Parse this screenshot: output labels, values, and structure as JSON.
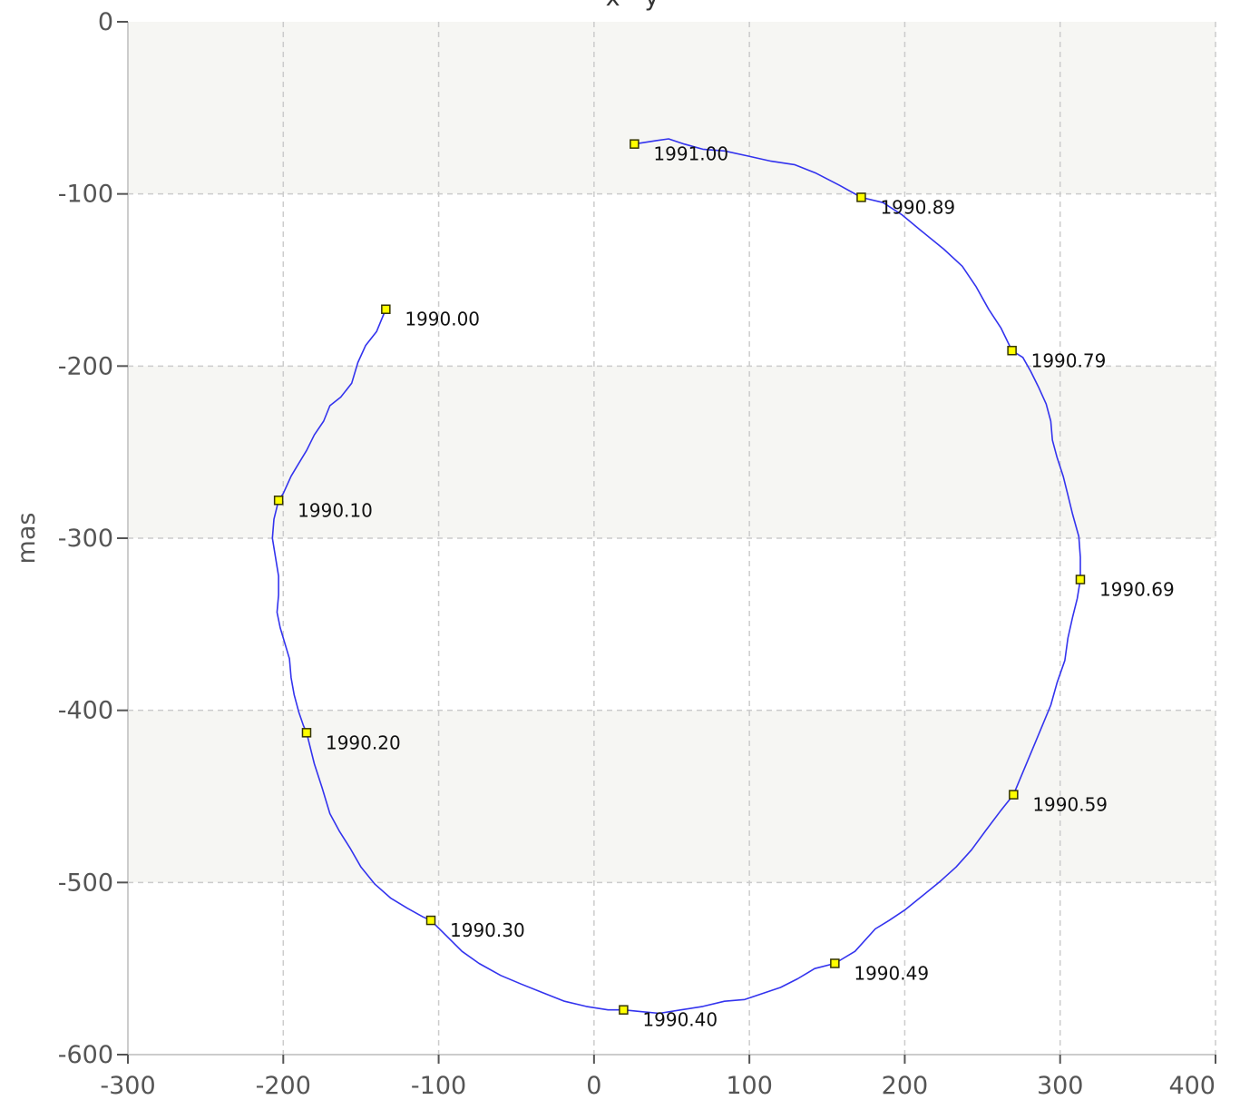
{
  "chart_data": {
    "type": "line",
    "title": "x - y",
    "xlabel": "",
    "ylabel": "mas",
    "xlim": [
      -300,
      400
    ],
    "ylim": [
      -600,
      0
    ],
    "x_ticks": [
      -300,
      -200,
      -100,
      0,
      100,
      200,
      300,
      400
    ],
    "y_ticks": [
      0,
      -100,
      -200,
      -300,
      -400,
      -500,
      -600
    ],
    "x_tick_labels": [
      "-300",
      "-200",
      "-100",
      "0",
      "100",
      "200",
      "300",
      "400"
    ],
    "y_tick_labels": [
      "0",
      "-100",
      "-200",
      "-300",
      "-400",
      "-500",
      "-600"
    ],
    "grid": true,
    "colors": {
      "line": "#3333ee",
      "marker_fill": "#ffff00",
      "marker_stroke": "#333300",
      "band": "#f6f6f3",
      "grid": "#cccccc"
    },
    "series": [
      {
        "path": [
          [
            -134,
            -167
          ],
          [
            -140,
            -180
          ],
          [
            -147,
            -188
          ],
          [
            -152,
            -198
          ],
          [
            -156,
            -210
          ],
          [
            -163,
            -218
          ],
          [
            -170,
            -223
          ],
          [
            -174,
            -232
          ],
          [
            -180,
            -240
          ],
          [
            -185,
            -249
          ],
          [
            -191,
            -258
          ],
          [
            -195,
            -264
          ],
          [
            -200,
            -274
          ],
          [
            -203,
            -278
          ],
          [
            -206,
            -289
          ],
          [
            -207,
            -300
          ],
          [
            -205,
            -311
          ],
          [
            -203,
            -322
          ],
          [
            -203,
            -333
          ],
          [
            -204,
            -343
          ],
          [
            -202,
            -352
          ],
          [
            -199,
            -361
          ],
          [
            -196,
            -370
          ],
          [
            -195,
            -381
          ],
          [
            -193,
            -391
          ],
          [
            -190,
            -401
          ],
          [
            -187,
            -409
          ],
          [
            -185,
            -413
          ],
          [
            -180,
            -431
          ],
          [
            -175,
            -445
          ],
          [
            -170,
            -460
          ],
          [
            -164,
            -470
          ],
          [
            -157,
            -480
          ],
          [
            -150,
            -491
          ],
          [
            -141,
            -501
          ],
          [
            -131,
            -509
          ],
          [
            -120,
            -515
          ],
          [
            -110,
            -520
          ],
          [
            -105,
            -522
          ],
          [
            -95,
            -531
          ],
          [
            -85,
            -540
          ],
          [
            -74,
            -547
          ],
          [
            -60,
            -554
          ],
          [
            -47,
            -559
          ],
          [
            -33,
            -564
          ],
          [
            -19,
            -569
          ],
          [
            -5,
            -572
          ],
          [
            9,
            -574
          ],
          [
            19,
            -574
          ],
          [
            30,
            -575
          ],
          [
            42,
            -576
          ],
          [
            56,
            -574
          ],
          [
            70,
            -572
          ],
          [
            84,
            -569
          ],
          [
            97,
            -568
          ],
          [
            110,
            -564
          ],
          [
            120,
            -561
          ],
          [
            131,
            -556
          ],
          [
            142,
            -550
          ],
          [
            155,
            -547
          ],
          [
            168,
            -540
          ],
          [
            181,
            -527
          ],
          [
            190,
            -522
          ],
          [
            200,
            -516
          ],
          [
            211,
            -508
          ],
          [
            222,
            -500
          ],
          [
            233,
            -491
          ],
          [
            243,
            -481
          ],
          [
            252,
            -470
          ],
          [
            262,
            -458
          ],
          [
            270,
            -449
          ],
          [
            276,
            -436
          ],
          [
            282,
            -423
          ],
          [
            288,
            -410
          ],
          [
            294,
            -397
          ],
          [
            298,
            -384
          ],
          [
            303,
            -371
          ],
          [
            305,
            -358
          ],
          [
            308,
            -346
          ],
          [
            311,
            -335
          ],
          [
            313,
            -324
          ],
          [
            313,
            -311
          ],
          [
            312,
            -299
          ],
          [
            308,
            -286
          ],
          [
            305,
            -275
          ],
          [
            302,
            -264
          ],
          [
            298,
            -253
          ],
          [
            295,
            -243
          ],
          [
            294,
            -232
          ],
          [
            291,
            -222
          ],
          [
            286,
            -212
          ],
          [
            281,
            -203
          ],
          [
            276,
            -195
          ],
          [
            269,
            -191
          ],
          [
            262,
            -178
          ],
          [
            254,
            -167
          ],
          [
            246,
            -154
          ],
          [
            237,
            -142
          ],
          [
            225,
            -132
          ],
          [
            210,
            -121
          ],
          [
            198,
            -112
          ],
          [
            186,
            -105
          ],
          [
            172,
            -102
          ],
          [
            158,
            -95
          ],
          [
            143,
            -88
          ],
          [
            129,
            -83
          ],
          [
            114,
            -81
          ],
          [
            99,
            -78
          ],
          [
            84,
            -75
          ],
          [
            70,
            -74
          ],
          [
            58,
            -71
          ],
          [
            48,
            -68
          ],
          [
            40,
            -69
          ],
          [
            33,
            -70
          ],
          [
            26,
            -71
          ]
        ]
      }
    ],
    "points": [
      {
        "x": -134,
        "y": -167,
        "label": "1990.00"
      },
      {
        "x": -203,
        "y": -278,
        "label": "1990.10"
      },
      {
        "x": -185,
        "y": -413,
        "label": "1990.20"
      },
      {
        "x": -105,
        "y": -522,
        "label": "1990.30"
      },
      {
        "x": 19,
        "y": -574,
        "label": "1990.40"
      },
      {
        "x": 155,
        "y": -547,
        "label": "1990.49"
      },
      {
        "x": 270,
        "y": -449,
        "label": "1990.59"
      },
      {
        "x": 313,
        "y": -324,
        "label": "1990.69"
      },
      {
        "x": 269,
        "y": -191,
        "label": "1990.79"
      },
      {
        "x": 172,
        "y": -102,
        "label": "1990.89"
      },
      {
        "x": 26,
        "y": -71,
        "label": "1991.00"
      }
    ]
  }
}
